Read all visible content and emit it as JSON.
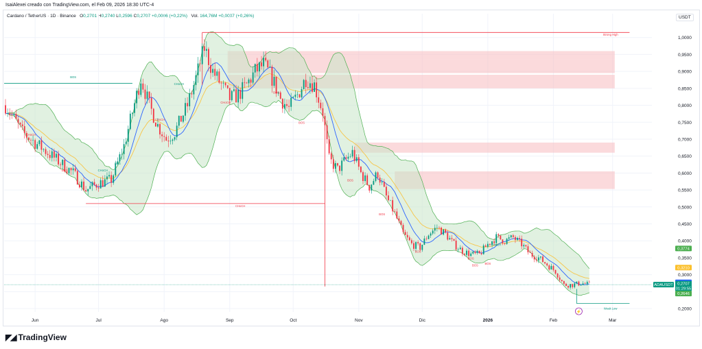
{
  "credit": "IsaiAlexei creado con TradingView.com, el Feb 09, 2026 18:30 UTC-4",
  "legend": {
    "title": "Cardano / TetherUS · 1D · Binance",
    "o_label": "O",
    "o": "0,2701",
    "h_label": "H",
    "h": "0,2740",
    "l_label": "L",
    "l": "0,2596",
    "c_label": "C",
    "c": "0,2707",
    "change": "+0,0006 (+0,22%)",
    "vol_label": "Vol.",
    "vol": "164,76M",
    "vol_change": "+0,0007 (+0,26%)"
  },
  "currency": "USDT",
  "logo_text": "TradingView",
  "colors": {
    "up": "#089981",
    "down": "#f23645",
    "bb": "#4caf50",
    "bb_fill": "#c8e6c9",
    "sma_blue": "#2962ff",
    "ema_yellow": "#f7c548",
    "zone": "#f8bbbf",
    "tag_green": "#4caf50",
    "tag_yellow": "#fbc02d",
    "tag_blue": "#2962ff",
    "tag_teal": "#089981",
    "grid": "#f0f3fa"
  },
  "chart_data": {
    "type": "candlestick",
    "ylim": [
      0.19,
      1.05
    ],
    "y_ticks": [
      "1,0000",
      "0,9500",
      "0,9000",
      "0,8500",
      "0,8000",
      "0,7500",
      "0,7000",
      "0,6500",
      "0,6000",
      "0,5500",
      "0,5000",
      "0,4500",
      "0,4000",
      "0,3500",
      "0,3000",
      "0,2500",
      "0,2000"
    ],
    "y_tick_values": [
      1.0,
      0.95,
      0.9,
      0.85,
      0.8,
      0.75,
      0.7,
      0.65,
      0.6,
      0.55,
      0.5,
      0.45,
      0.4,
      0.35,
      0.3,
      0.25,
      0.2
    ],
    "x_ticks": [
      "Jun",
      "Jul",
      "Ago",
      "Sep",
      "Oct",
      "Nov",
      "Dic",
      "2026",
      "Feb",
      "Mar"
    ],
    "x_tick_index": [
      14,
      44,
      75,
      106,
      136,
      167,
      197,
      228,
      259,
      287
    ],
    "n_bars": 277,
    "close_anchors": [
      [
        0,
        0.8
      ],
      [
        8,
        0.72
      ],
      [
        14,
        0.69
      ],
      [
        20,
        0.66
      ],
      [
        26,
        0.63
      ],
      [
        32,
        0.6
      ],
      [
        38,
        0.55
      ],
      [
        44,
        0.57
      ],
      [
        50,
        0.58
      ],
      [
        56,
        0.68
      ],
      [
        60,
        0.78
      ],
      [
        64,
        0.88
      ],
      [
        68,
        0.8
      ],
      [
        72,
        0.74
      ],
      [
        76,
        0.7
      ],
      [
        80,
        0.72
      ],
      [
        86,
        0.8
      ],
      [
        90,
        0.88
      ],
      [
        94,
        0.97
      ],
      [
        98,
        0.9
      ],
      [
        102,
        0.86
      ],
      [
        106,
        0.82
      ],
      [
        110,
        0.83
      ],
      [
        114,
        0.86
      ],
      [
        118,
        0.9
      ],
      [
        122,
        0.92
      ],
      [
        126,
        0.88
      ],
      [
        130,
        0.82
      ],
      [
        134,
        0.79
      ],
      [
        138,
        0.83
      ],
      [
        142,
        0.88
      ],
      [
        146,
        0.86
      ],
      [
        150,
        0.78
      ],
      [
        153,
        0.64
      ],
      [
        157,
        0.61
      ],
      [
        161,
        0.64
      ],
      [
        164,
        0.66
      ],
      [
        168,
        0.6
      ],
      [
        172,
        0.56
      ],
      [
        176,
        0.6
      ],
      [
        180,
        0.53
      ],
      [
        184,
        0.48
      ],
      [
        188,
        0.42
      ],
      [
        192,
        0.39
      ],
      [
        196,
        0.38
      ],
      [
        200,
        0.42
      ],
      [
        204,
        0.44
      ],
      [
        208,
        0.42
      ],
      [
        212,
        0.39
      ],
      [
        216,
        0.37
      ],
      [
        220,
        0.36
      ],
      [
        224,
        0.36
      ],
      [
        228,
        0.39
      ],
      [
        232,
        0.41
      ],
      [
        236,
        0.4
      ],
      [
        240,
        0.41
      ],
      [
        244,
        0.39
      ],
      [
        248,
        0.36
      ],
      [
        252,
        0.35
      ],
      [
        256,
        0.33
      ],
      [
        260,
        0.31
      ],
      [
        264,
        0.27
      ],
      [
        268,
        0.27
      ],
      [
        272,
        0.275
      ],
      [
        276,
        0.2707
      ]
    ],
    "zones": [
      [
        0.935,
        0.96,
        105,
        288
      ],
      [
        0.895,
        0.935,
        105,
        288
      ],
      [
        0.85,
        0.89,
        105,
        288
      ],
      [
        0.66,
        0.69,
        165,
        288
      ],
      [
        0.553,
        0.605,
        184,
        288
      ]
    ],
    "labels": [
      {
        "text": "BOS",
        "price": 0.88,
        "i": 32,
        "color": "#089981"
      },
      {
        "text": "CHoCH",
        "price": 0.71,
        "i": 12,
        "color": "#f23645"
      },
      {
        "text": "BOS",
        "price": 0.605,
        "i": 28,
        "color": "#f23645"
      },
      {
        "text": "CHoCH",
        "price": 0.605,
        "i": 46,
        "color": "#089981"
      },
      {
        "text": "BOS",
        "price": 0.625,
        "i": 53,
        "color": "#089981"
      },
      {
        "text": "CHoCH",
        "price": 0.86,
        "i": 82,
        "color": "#089981"
      },
      {
        "text": "CHoCH",
        "price": 0.755,
        "i": 73,
        "color": "#f23645"
      },
      {
        "text": "CHoCH",
        "price": 0.805,
        "i": 104,
        "color": "#f23645"
      },
      {
        "text": "BOS",
        "price": 0.835,
        "i": 128,
        "color": "#f23645"
      },
      {
        "text": "BOS",
        "price": 0.745,
        "i": 140,
        "color": "#f23645"
      },
      {
        "text": "CHoCH",
        "price": 0.5,
        "i": 111,
        "color": "#f23645"
      },
      {
        "text": "BOS",
        "price": 0.575,
        "i": 163,
        "color": "#f23645"
      },
      {
        "text": "BOS",
        "price": 0.475,
        "i": 178,
        "color": "#f23645"
      },
      {
        "text": "BOS",
        "price": 0.365,
        "i": 195,
        "color": "#f23645"
      },
      {
        "text": "BOS",
        "price": 0.345,
        "i": 220,
        "color": "#f23645"
      },
      {
        "text": "CHoCH",
        "price": 0.385,
        "i": 232,
        "color": "#089981"
      },
      {
        "text": "BOS",
        "price": 0.33,
        "i": 228,
        "color": "#f23645"
      },
      {
        "text": "BOS",
        "price": 0.325,
        "i": 222,
        "color": "#f23645"
      },
      {
        "text": "Strong High",
        "price": 1.005,
        "i": 286,
        "color": "#f23645"
      },
      {
        "text": "Weak Low",
        "price": 0.197,
        "i": 286,
        "color": "#089981"
      }
    ],
    "price_tags": [
      {
        "text": "0,3774",
        "price": 0.3774,
        "color": "#4caf50"
      },
      {
        "text": "0,3210",
        "price": 0.321,
        "color": "#fbc02d"
      },
      {
        "text": "0,2775",
        "price": 0.2775,
        "color": "#2962ff"
      },
      {
        "text": "0,2707",
        "price": 0.2707,
        "color": "#089981"
      },
      {
        "text": "ADAUSDT",
        "price": 0.2707,
        "color": "#089981",
        "left": true
      },
      {
        "text": "01:29:55",
        "price": 0.258,
        "color": "#089981"
      },
      {
        "text": "0,2646",
        "price": 0.2646,
        "color": "#4caf50"
      }
    ]
  }
}
